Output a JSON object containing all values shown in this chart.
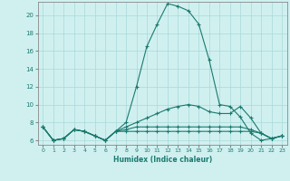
{
  "xlabel": "Humidex (Indice chaleur)",
  "x_values": [
    0,
    1,
    2,
    3,
    4,
    5,
    6,
    7,
    8,
    9,
    10,
    11,
    12,
    13,
    14,
    15,
    16,
    17,
    18,
    19,
    20,
    21,
    22,
    23
  ],
  "line1": [
    7.5,
    6.0,
    6.2,
    7.2,
    7.0,
    6.5,
    6.0,
    7.0,
    8.0,
    12.0,
    16.5,
    19.0,
    21.3,
    21.0,
    20.5,
    19.0,
    15.0,
    10.0,
    9.8,
    8.6,
    6.8,
    6.0,
    6.2,
    6.5
  ],
  "line2": [
    7.5,
    6.0,
    6.2,
    7.2,
    7.0,
    6.5,
    6.0,
    7.0,
    7.5,
    8.0,
    8.5,
    9.0,
    9.5,
    9.8,
    10.0,
    9.8,
    9.2,
    9.0,
    9.0,
    9.8,
    8.5,
    6.8,
    6.2,
    6.5
  ],
  "line3": [
    7.5,
    6.0,
    6.2,
    7.2,
    7.0,
    6.5,
    6.0,
    7.0,
    7.2,
    7.5,
    7.5,
    7.5,
    7.5,
    7.5,
    7.5,
    7.5,
    7.5,
    7.5,
    7.5,
    7.5,
    7.2,
    6.8,
    6.2,
    6.5
  ],
  "line4": [
    7.5,
    6.0,
    6.2,
    7.2,
    7.0,
    6.5,
    6.0,
    7.0,
    7.0,
    7.0,
    7.0,
    7.0,
    7.0,
    7.0,
    7.0,
    7.0,
    7.0,
    7.0,
    7.0,
    7.0,
    7.0,
    6.8,
    6.2,
    6.5
  ],
  "ylim": [
    5.5,
    21.5
  ],
  "xlim": [
    -0.5,
    23.5
  ],
  "yticks": [
    6,
    8,
    10,
    12,
    14,
    16,
    18,
    20
  ],
  "xticks": [
    0,
    1,
    2,
    3,
    4,
    5,
    6,
    7,
    8,
    9,
    10,
    11,
    12,
    13,
    14,
    15,
    16,
    17,
    18,
    19,
    20,
    21,
    22,
    23
  ],
  "line_color": "#1a7a6e",
  "bg_color": "#d0f0f0",
  "grid_color": "#a8d8d8",
  "spine_color": "#888888"
}
